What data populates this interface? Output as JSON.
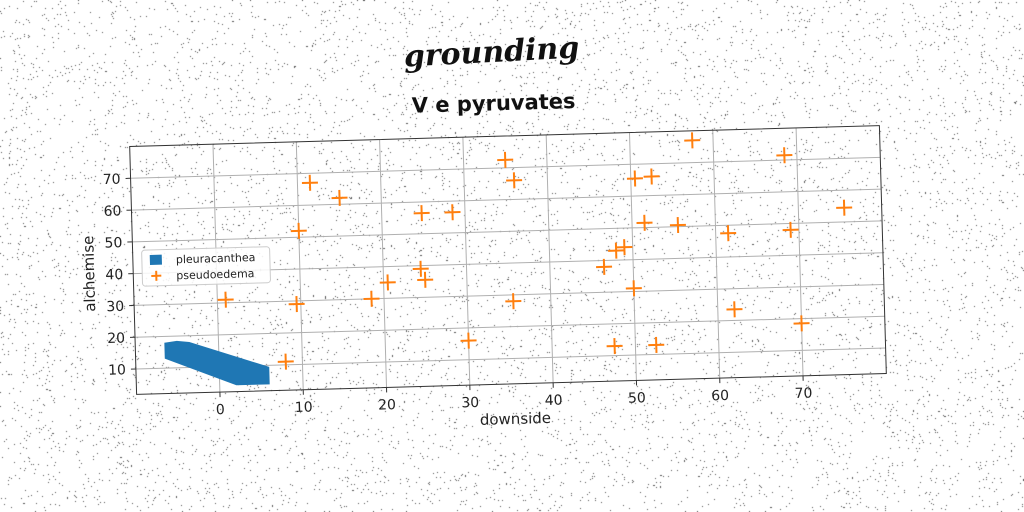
{
  "chart_data": {
    "type": "scatter",
    "suptitle": "grounding",
    "title": "V  e pyruvates",
    "xlabel": "downside",
    "ylabel": "alchemise",
    "xlim": [
      -10,
      80
    ],
    "ylim": [
      2,
      80
    ],
    "xticks": [
      0,
      10,
      20,
      30,
      40,
      50,
      60,
      70
    ],
    "yticks": [
      10,
      20,
      30,
      40,
      50,
      60,
      70
    ],
    "grid": true,
    "legend_position": "center-left",
    "series": [
      {
        "name": "pleuracanthea",
        "kind": "area",
        "color": "#1f77b4",
        "polygon": [
          [
            -6.5,
            18
          ],
          [
            -5,
            18.5
          ],
          [
            -3.5,
            18
          ],
          [
            6,
            9.5
          ],
          [
            6,
            4
          ],
          [
            2,
            4
          ],
          [
            -6.5,
            13
          ]
        ]
      },
      {
        "name": "pseudoedema",
        "kind": "scatter",
        "marker": "+",
        "color": "#ff7f0e",
        "points": [
          [
            1,
            31
          ],
          [
            8,
            11
          ],
          [
            9.5,
            29
          ],
          [
            10,
            52
          ],
          [
            11.5,
            67
          ],
          [
            15,
            62
          ],
          [
            18.5,
            30
          ],
          [
            20.5,
            35
          ],
          [
            24.5,
            39
          ],
          [
            24.8,
            56.5
          ],
          [
            25,
            35.5
          ],
          [
            28.5,
            56.5
          ],
          [
            30,
            16
          ],
          [
            35,
            72.5
          ],
          [
            35.5,
            28
          ],
          [
            36,
            66
          ],
          [
            46.5,
            38
          ],
          [
            47.5,
            13
          ],
          [
            48,
            43
          ],
          [
            49,
            44
          ],
          [
            50,
            31
          ],
          [
            50.5,
            65.5
          ],
          [
            51.5,
            51.5
          ],
          [
            52.5,
            66
          ],
          [
            52.5,
            13
          ],
          [
            55.5,
            50.5
          ],
          [
            57.5,
            77
          ],
          [
            61.5,
            47.5
          ],
          [
            62,
            23.5
          ],
          [
            68.5,
            71.5
          ],
          [
            69,
            48
          ],
          [
            70,
            18.5
          ],
          [
            75.5,
            54.5
          ]
        ]
      }
    ]
  }
}
